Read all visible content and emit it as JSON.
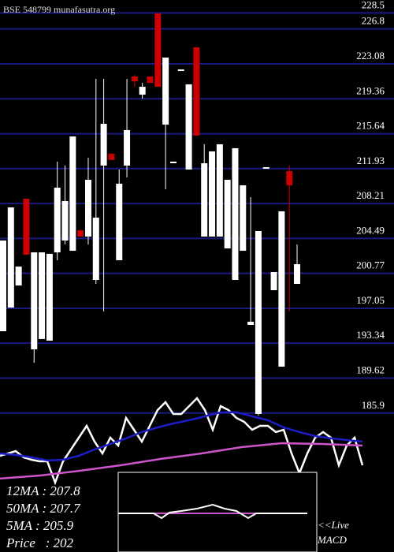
{
  "chart_data": {
    "type": "candlestick",
    "title": "BSE 548799 munafasutra.org",
    "open": [
      194.61,
      197.13,
      199.48,
      208.72,
      192.68,
      193.78,
      193.61,
      203.01,
      204.27,
      203.18,
      205.36,
      204.69,
      200.07,
      212.25,
      213.51,
      202.17,
      212.25,
      221.74,
      219.8,
      221.74,
      228.45,
      216.61,
      212.5,
      222.32,
      211.83,
      224.84,
      204.69,
      204.69,
      204.69,
      203.43,
      200.07,
      203.18,
      195.29,
      185.8,
      211.91,
      198.98,
      190.84,
      211.66,
      199.65
    ],
    "high": [
      204.27,
      207.8,
      201.5,
      208.72,
      203.01,
      203.01,
      202.85,
      212.67,
      212.25,
      215.35,
      205.36,
      213.09,
      221.48,
      221.48,
      213.51,
      211.83,
      221.48,
      221.9,
      221.06,
      221.74,
      228.45,
      223.75,
      212.67,
      222.49,
      220.9,
      224.84,
      214.52,
      213.76,
      214.52,
      210.74,
      214.1,
      210.15,
      208.89,
      205.28,
      212.08,
      200.91,
      207.38,
      212.25,
      203.85
    ],
    "low": [
      194.61,
      197.13,
      199.48,
      202.76,
      191.26,
      193.78,
      193.61,
      202.17,
      203.85,
      203.18,
      204.69,
      203.85,
      199.65,
      196.72,
      212.84,
      202.17,
      210.99,
      220.64,
      219.38,
      221.06,
      220.64,
      209.73,
      212.5,
      222.32,
      211.83,
      215.44,
      204.69,
      204.69,
      204.69,
      203.43,
      200.07,
      203.18,
      195.29,
      185.63,
      211.91,
      198.98,
      190.84,
      196.72,
      199.65
    ],
    "close": [
      204.27,
      207.8,
      201.5,
      202.76,
      203.01,
      203.01,
      202.85,
      209.9,
      208.47,
      215.35,
      204.69,
      210.74,
      206.71,
      216.7,
      212.84,
      210.32,
      216.03,
      221.23,
      220.64,
      221.06,
      220.64,
      223.75,
      212.67,
      222.49,
      220.9,
      215.44,
      212.5,
      213.76,
      214.52,
      210.74,
      214.1,
      210.15,
      195.62,
      205.28,
      212.08,
      200.91,
      207.38,
      210.15,
      201.75
    ],
    "up_color": "#ffffff",
    "down_color": "#cc0000",
    "series": [
      {
        "color": "#ffffff",
        "values": [
          181.35,
          181.6,
          181.85,
          181.18,
          180.93,
          180.76,
          180.76,
          178.5,
          180.76,
          182.02,
          183.28,
          184.54,
          182.86,
          181.6,
          183.28,
          182.44,
          185.38,
          184.12,
          182.86,
          184.54,
          186.22,
          187.06,
          185.8,
          185.8,
          186.64,
          187.48,
          186.22,
          184.12,
          186.64,
          186.22,
          185.38,
          184.96,
          184.12,
          184.54,
          184.54,
          183.87,
          184.12,
          181.6,
          179.5,
          181.6,
          183.28,
          183.87,
          183.28,
          180.34,
          182.44,
          183.28,
          180.34
        ]
      },
      {
        "color": "#1c1cc8",
        "values": [
          181.6,
          181.44,
          181.18,
          180.85,
          180.93,
          181.35,
          182.02,
          182.61,
          183.2,
          183.87,
          184.37,
          184.79,
          185.13,
          185.55,
          185.97,
          185.97,
          185.55,
          185.13,
          184.37,
          183.87,
          183.45,
          183.2,
          183.03,
          182.86
        ]
      },
      {
        "color": "#cc55cc",
        "values": [
          178.92,
          179.25,
          179.76,
          180.34,
          181.02,
          181.6,
          182.27,
          182.69,
          182.61,
          182.44
        ]
      }
    ],
    "ylim": [
      177.82,
      229.88
    ],
    "yticks": [
      228.5,
      226.8,
      223.08,
      219.36,
      215.64,
      211.93,
      208.21,
      204.49,
      200.77,
      197.05,
      193.34,
      189.62,
      185.9
    ],
    "grid": true,
    "grid_color": "#1a1a80",
    "annotations": [
      "12MA : 207.8",
      "50MA : 207.7",
      "5MA : 205.9",
      "Price   : 202"
    ],
    "panel_label": [
      "<<Live",
      "MACD"
    ]
  }
}
